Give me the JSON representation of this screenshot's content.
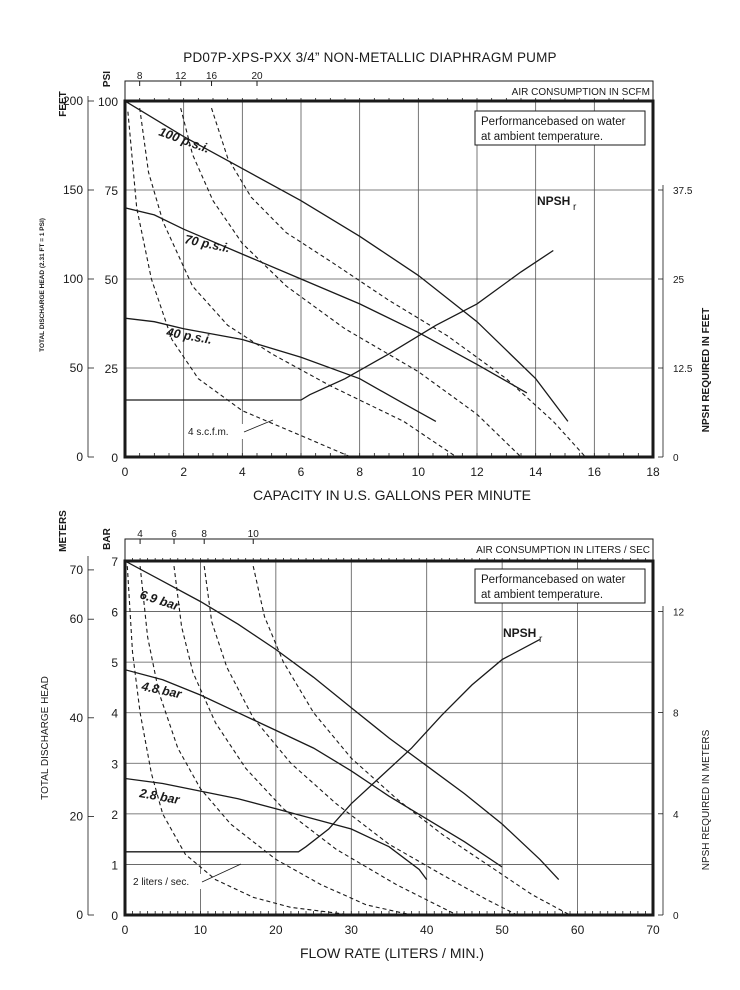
{
  "title": "PD07P-XPS-PXX 3/4” NON-METALLIC DIAPHRAGM PUMP",
  "colors": {
    "ink": "#1a1a1a",
    "grid": "#555555",
    "background": "#ffffff"
  },
  "chart_data": [
    {
      "type": "line",
      "title": "US units",
      "xlabel": "CAPACITY IN U.S. GALLONS PER MINUTE",
      "xlim": [
        0,
        18
      ],
      "x_ticks": [
        0,
        2,
        4,
        6,
        8,
        10,
        12,
        14,
        16,
        18
      ],
      "left_primary_label": "PSI",
      "left_primary_lim": [
        0,
        100
      ],
      "left_primary_ticks": [
        0,
        25,
        50,
        75,
        100
      ],
      "left_secondary_label": "FEET",
      "left_secondary_ticks": [
        0,
        50,
        100,
        150,
        200
      ],
      "left_secondary_caption": "TOTAL DISCHARGE HEAD (2.31 FT = 1 PSI)",
      "right_label": "NPSH REQUIRED IN FEET",
      "right_ticks": [
        0,
        12.5,
        25,
        37.5
      ],
      "top_label": "AIR CONSUMPTION IN SCFM",
      "top_ticks": [
        {
          "label": "8",
          "x": 0.5
        },
        {
          "label": "12",
          "x": 1.9
        },
        {
          "label": "16",
          "x": 2.95
        },
        {
          "label": "20",
          "x": 4.5
        }
      ],
      "note_lines": [
        "Performancebased on water",
        "at ambient temperature."
      ],
      "npsh_label": "NPSH",
      "npsh_subscript": "r",
      "flow_note": "4 s.c.f.m.",
      "pressure_series": [
        {
          "name": "100 p.s.i.",
          "points": [
            [
              0,
              100
            ],
            [
              2,
              90
            ],
            [
              4,
              81
            ],
            [
              6,
              72
            ],
            [
              8,
              62
            ],
            [
              10,
              51
            ],
            [
              12,
              38
            ],
            [
              14,
              22
            ],
            [
              15.1,
              10
            ]
          ]
        },
        {
          "name": "70 p.s.i.",
          "points": [
            [
              0,
              70
            ],
            [
              1,
              68
            ],
            [
              2,
              64
            ],
            [
              4,
              57
            ],
            [
              6,
              50
            ],
            [
              8,
              43
            ],
            [
              10,
              35
            ],
            [
              12,
              26
            ],
            [
              13.7,
              18
            ]
          ]
        },
        {
          "name": "40 p.s.i.",
          "points": [
            [
              0,
              39
            ],
            [
              1,
              38
            ],
            [
              2,
              36
            ],
            [
              4,
              33
            ],
            [
              6,
              28
            ],
            [
              8,
              22
            ],
            [
              9.5,
              15
            ],
            [
              10.6,
              10
            ]
          ]
        }
      ],
      "air_series": [
        {
          "name": "4 s.c.f.m.",
          "points": [
            [
              0.1,
              97
            ],
            [
              0.4,
              70
            ],
            [
              0.9,
              50
            ],
            [
              1.6,
              33
            ],
            [
              2.5,
              22
            ],
            [
              4,
              13
            ],
            [
              6,
              6
            ],
            [
              7.7,
              0
            ]
          ]
        },
        {
          "name": "8 scfm",
          "points": [
            [
              0.5,
              98
            ],
            [
              0.8,
              80
            ],
            [
              1.3,
              66
            ],
            [
              2.3,
              48
            ],
            [
              3.5,
              37
            ],
            [
              5,
              29
            ],
            [
              7,
              20
            ],
            [
              9.5,
              10
            ],
            [
              11.3,
              0
            ]
          ]
        },
        {
          "name": "12 scfm",
          "points": [
            [
              1.9,
              98
            ],
            [
              2.3,
              85
            ],
            [
              3,
              72
            ],
            [
              4,
              60
            ],
            [
              5.5,
              48
            ],
            [
              7.5,
              36
            ],
            [
              10,
              24
            ],
            [
              12,
              12
            ],
            [
              13.5,
              0
            ]
          ]
        },
        {
          "name": "16 scfm",
          "points": [
            [
              2.95,
              98
            ],
            [
              3.5,
              84
            ],
            [
              4.3,
              73
            ],
            [
              5.5,
              63
            ],
            [
              7,
              55
            ],
            [
              9,
              44
            ],
            [
              11,
              34
            ],
            [
              13,
              22
            ],
            [
              14.6,
              10
            ],
            [
              15.7,
              0
            ]
          ]
        }
      ],
      "npsh_curve": [
        [
          0,
          16
        ],
        [
          6,
          16
        ],
        [
          6.3,
          17.5
        ],
        [
          7.5,
          22
        ],
        [
          9,
          29
        ],
        [
          10.6,
          37
        ],
        [
          12,
          43
        ],
        [
          13.5,
          52
        ],
        [
          14.6,
          58
        ]
      ]
    },
    {
      "type": "line",
      "title": "Metric units",
      "xlabel": "FLOW RATE (LITERS / MIN.)",
      "xlim": [
        0,
        70
      ],
      "x_ticks": [
        0,
        10,
        20,
        30,
        40,
        50,
        60,
        70
      ],
      "left_primary_label": "BAR",
      "left_primary_lim": [
        0,
        7
      ],
      "left_primary_ticks": [
        0,
        1,
        2,
        3,
        4,
        5,
        6,
        7
      ],
      "left_secondary_label": "METERS",
      "left_secondary_ticks": [
        0,
        20,
        40,
        60,
        70
      ],
      "left_secondary_caption": "TOTAL DISCHARGE HEAD",
      "right_label": "NPSH REQUIRED IN METERS",
      "right_ticks": [
        0,
        4,
        8,
        12
      ],
      "top_label": "AIR CONSUMPTION IN LITERS / SEC",
      "top_ticks": [
        {
          "label": "4",
          "x": 2
        },
        {
          "label": "6",
          "x": 6.5
        },
        {
          "label": "8",
          "x": 10.5
        },
        {
          "label": "10",
          "x": 17
        }
      ],
      "note_lines": [
        "Performancebased on water",
        "at ambient temperature."
      ],
      "npsh_label": "NPSH",
      "npsh_subscript": "r",
      "flow_note": "2 liters / sec.",
      "pressure_series": [
        {
          "name": "6.9 bar",
          "points": [
            [
              0,
              7
            ],
            [
              5,
              6.6
            ],
            [
              10,
              6.2
            ],
            [
              15,
              5.75
            ],
            [
              20,
              5.25
            ],
            [
              25,
              4.7
            ],
            [
              30,
              4.1
            ],
            [
              35,
              3.5
            ],
            [
              40,
              2.95
            ],
            [
              45,
              2.4
            ],
            [
              50,
              1.8
            ],
            [
              55,
              1.1
            ],
            [
              57.5,
              0.7
            ]
          ]
        },
        {
          "name": "4.8 bar",
          "points": [
            [
              0,
              4.85
            ],
            [
              5,
              4.65
            ],
            [
              10,
              4.35
            ],
            [
              15,
              4
            ],
            [
              20,
              3.65
            ],
            [
              25,
              3.3
            ],
            [
              30,
              2.85
            ],
            [
              35,
              2.35
            ],
            [
              40,
              1.9
            ],
            [
              45,
              1.45
            ],
            [
              50,
              0.95
            ]
          ]
        },
        {
          "name": "2.8 bar",
          "points": [
            [
              0,
              2.7
            ],
            [
              5,
              2.6
            ],
            [
              10,
              2.45
            ],
            [
              15,
              2.3
            ],
            [
              20,
              2.1
            ],
            [
              25,
              1.9
            ],
            [
              30,
              1.7
            ],
            [
              35,
              1.35
            ],
            [
              39,
              0.9
            ],
            [
              40,
              0.7
            ]
          ]
        }
      ],
      "air_series": [
        {
          "name": "2 liters / sec.",
          "points": [
            [
              0.3,
              6.9
            ],
            [
              1,
              5.2
            ],
            [
              2,
              4
            ],
            [
              3.5,
              2.8
            ],
            [
              5,
              2
            ],
            [
              8,
              1.2
            ],
            [
              12,
              0.7
            ],
            [
              17,
              0.35
            ],
            [
              22,
              0.15
            ],
            [
              30,
              0
            ]
          ]
        },
        {
          "name": "4 L/s",
          "points": [
            [
              2,
              6.9
            ],
            [
              3,
              5.5
            ],
            [
              4.5,
              4.4
            ],
            [
              7,
              3.3
            ],
            [
              10,
              2.5
            ],
            [
              14,
              1.8
            ],
            [
              20,
              1.1
            ],
            [
              26,
              0.6
            ],
            [
              32,
              0.2
            ],
            [
              38,
              0
            ]
          ]
        },
        {
          "name": "6 L/s",
          "points": [
            [
              6.5,
              6.9
            ],
            [
              7.5,
              5.7
            ],
            [
              9,
              4.8
            ],
            [
              12,
              3.8
            ],
            [
              16,
              2.9
            ],
            [
              21,
              2.1
            ],
            [
              28,
              1.3
            ],
            [
              36,
              0.6
            ],
            [
              44,
              0
            ]
          ]
        },
        {
          "name": "8 L/s",
          "points": [
            [
              10.5,
              6.9
            ],
            [
              11.5,
              5.8
            ],
            [
              13.5,
              4.9
            ],
            [
              17,
              3.9
            ],
            [
              22,
              3
            ],
            [
              28,
              2.2
            ],
            [
              35,
              1.4
            ],
            [
              42,
              0.8
            ],
            [
              48,
              0.3
            ],
            [
              52,
              0
            ]
          ]
        },
        {
          "name": "10 L/s",
          "points": [
            [
              17,
              6.9
            ],
            [
              18.5,
              5.9
            ],
            [
              21,
              5
            ],
            [
              25,
              4
            ],
            [
              30,
              3.1
            ],
            [
              36,
              2.3
            ],
            [
              42,
              1.6
            ],
            [
              48,
              1
            ],
            [
              54,
              0.4
            ],
            [
              59,
              0
            ]
          ]
        }
      ],
      "npsh_curve": [
        [
          0,
          1.25
        ],
        [
          23,
          1.25
        ],
        [
          24,
          1.35
        ],
        [
          27,
          1.7
        ],
        [
          30,
          2.2
        ],
        [
          34,
          2.75
        ],
        [
          38,
          3.3
        ],
        [
          42,
          3.95
        ],
        [
          46,
          4.55
        ],
        [
          50,
          5.05
        ],
        [
          55,
          5.45
        ]
      ]
    }
  ]
}
